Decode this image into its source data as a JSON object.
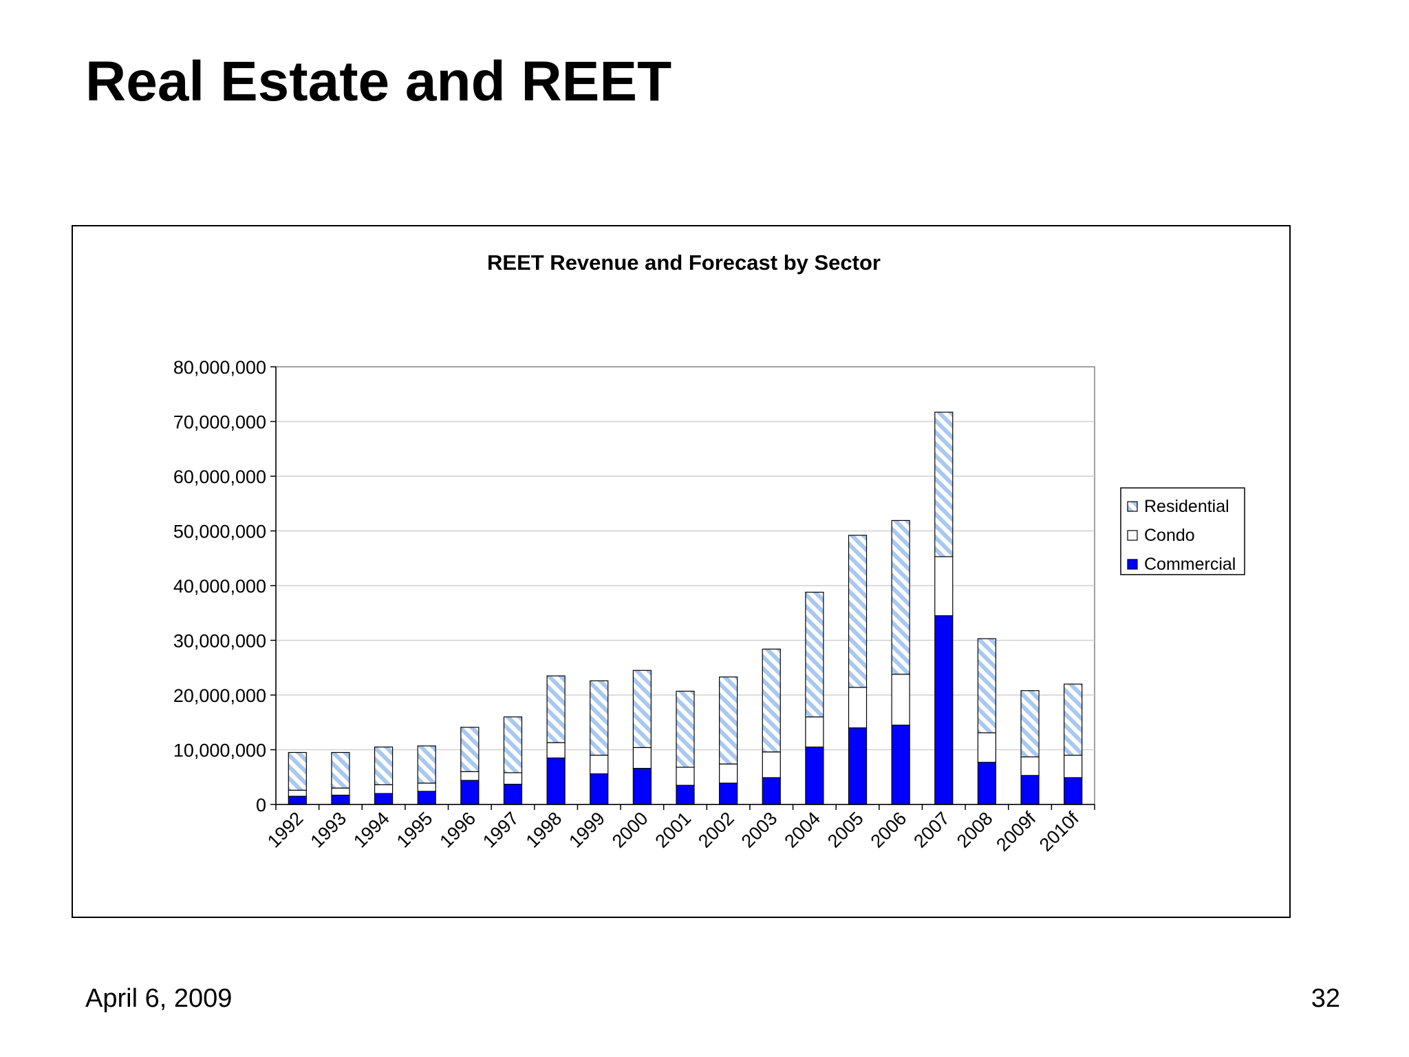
{
  "slide": {
    "title": "Real Estate and REET",
    "date": "April 6, 2009",
    "page_number": "32"
  },
  "colors": {
    "commercial": "#0000ff",
    "condo": "#ffffff",
    "residential_stripe": "#a8c8f0",
    "gridline": "#d0d0d0"
  },
  "chart_data": {
    "type": "bar",
    "stacked": true,
    "title": "REET Revenue and Forecast by Sector",
    "xlabel": "",
    "ylabel": "",
    "ylim": [
      0,
      80000000
    ],
    "yticks": [
      0,
      10000000,
      20000000,
      30000000,
      40000000,
      50000000,
      60000000,
      70000000,
      80000000
    ],
    "ytick_labels": [
      "0",
      "10,000,000",
      "20,000,000",
      "30,000,000",
      "40,000,000",
      "50,000,000",
      "60,000,000",
      "70,000,000",
      "80,000,000"
    ],
    "grid": true,
    "legend_position": "right",
    "categories": [
      "1992",
      "1993",
      "1994",
      "1995",
      "1996",
      "1997",
      "1998",
      "1999",
      "2000",
      "2001",
      "2002",
      "2003",
      "2004",
      "2005",
      "2006",
      "2007",
      "2008",
      "2009f",
      "2010f"
    ],
    "series": [
      {
        "name": "Commercial",
        "values": [
          1500000,
          1700000,
          2000000,
          2400000,
          4400000,
          3700000,
          8500000,
          5600000,
          6600000,
          3500000,
          3900000,
          4900000,
          10500000,
          14000000,
          14500000,
          34500000,
          7700000,
          5300000,
          4900000
        ]
      },
      {
        "name": "Condo",
        "values": [
          1100000,
          1300000,
          1600000,
          1500000,
          1600000,
          2100000,
          2800000,
          3400000,
          3800000,
          3300000,
          3500000,
          4700000,
          5500000,
          7400000,
          9300000,
          10800000,
          5400000,
          3400000,
          4100000
        ]
      },
      {
        "name": "Residential",
        "values": [
          6900000,
          6500000,
          6900000,
          6800000,
          8100000,
          10200000,
          12200000,
          13600000,
          14100000,
          13900000,
          15900000,
          18800000,
          22800000,
          27800000,
          28100000,
          26400000,
          17200000,
          12100000,
          13000000
        ]
      }
    ],
    "legend": [
      "Residential",
      "Condo",
      "Commercial"
    ]
  }
}
